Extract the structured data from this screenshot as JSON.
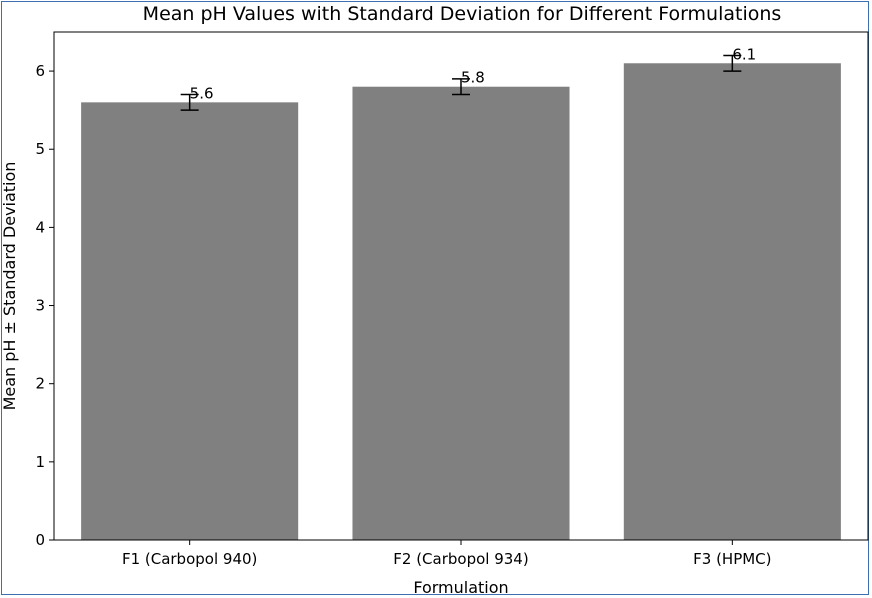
{
  "chart_data": {
    "type": "bar",
    "title": "Mean pH Values with Standard Deviation for Different Formulations",
    "xlabel": "Formulation",
    "ylabel": "Mean pH ± Standard Deviation",
    "categories": [
      "F1 (Carbopol 940)",
      "F2 (Carbopol 934)",
      "F3 (HPMC)"
    ],
    "values": [
      5.6,
      5.8,
      6.1
    ],
    "errors": [
      0.1,
      0.1,
      0.1
    ],
    "data_labels": [
      "5.6",
      "5.8",
      "6.1"
    ],
    "ylim": [
      0,
      6.5
    ],
    "yticks": [
      0,
      1,
      2,
      3,
      4,
      5,
      6
    ],
    "grid": false,
    "bar_color": "#808080",
    "error_color": "#000000"
  }
}
